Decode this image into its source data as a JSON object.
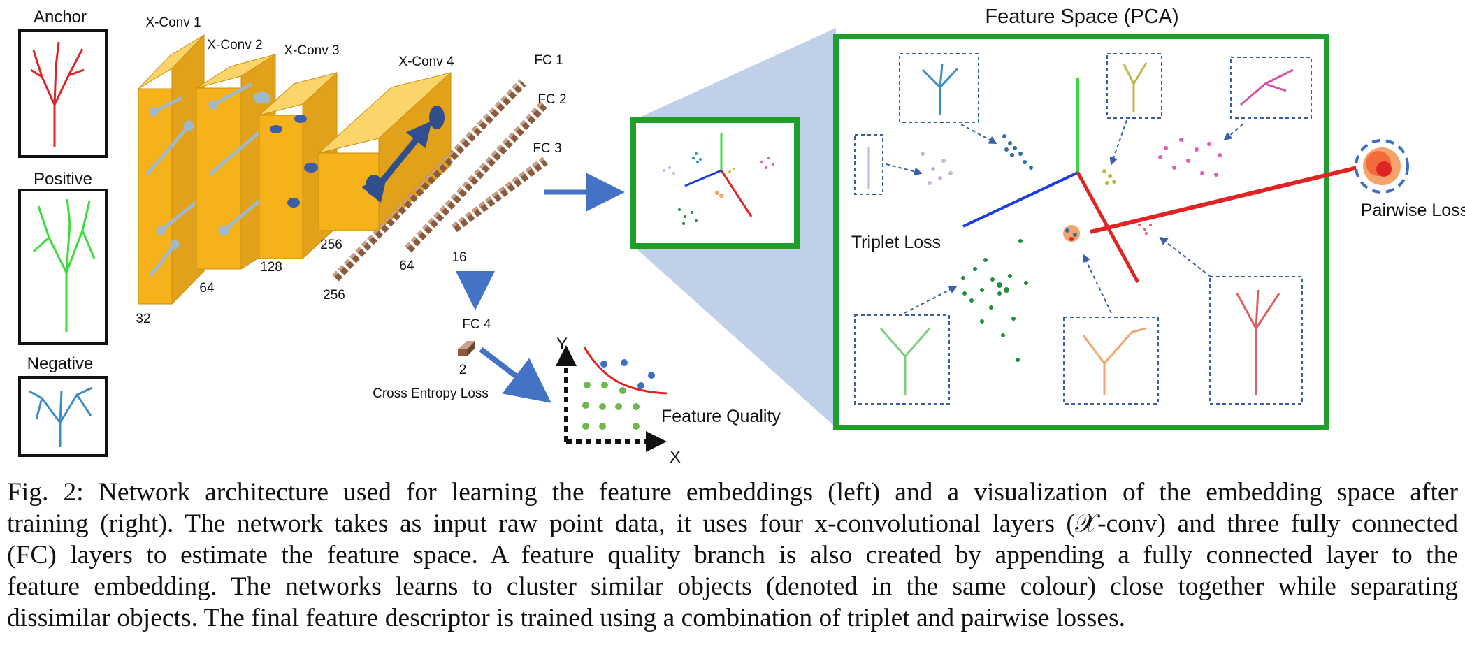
{
  "inputs": {
    "anchor": "Anchor",
    "positive": "Positive",
    "negative": "Negative"
  },
  "network": {
    "xconv1": "X-Conv 1",
    "xconv2": "X-Conv 2",
    "xconv3": "X-Conv 3",
    "xconv4": "X-Conv 4",
    "dim32": "32",
    "dim64": "64",
    "dim128": "128",
    "dim256": "256",
    "fc1": "FC 1",
    "fc2": "FC 2",
    "fc3": "FC 3",
    "fc4": "FC 4",
    "fc1_dim": "256",
    "fc2_dim": "64",
    "fc3_dim": "16",
    "fc4_dim": "2",
    "cross_entropy": "Cross Entropy Loss"
  },
  "quality_plot": {
    "y_axis": "Y",
    "x_axis": "X",
    "label": "Feature Quality"
  },
  "feature_space": {
    "title": "Feature Space (PCA)",
    "triplet": "Triplet Loss",
    "pairwise": "Pairwise Loss"
  },
  "colors": {
    "conv_yellow": "#F5B21B",
    "green_frame": "#1E9E2A",
    "arrow_blue": "#4472C4",
    "fc_brown": "#8B5A3C",
    "anchor_red": "#E02424",
    "positive_green": "#3DDB3D",
    "negative_blue": "#3C8CC8"
  },
  "caption": {
    "line1": "Fig. 2: Network architecture used for learning the feature embeddings (left) and a visualization of the embedding space after",
    "line2": "training (right). The network takes as input raw point data, it uses four x-convolutional layers (𝒳-conv) and three fully connected",
    "line3": "(FC) layers to estimate the feature space. A feature quality branch is also created by appending a fully connected layer to the",
    "line4": "feature embedding. The networks learns to cluster similar objects (denoted in the same colour) close together while separating",
    "line5": "dissimilar objects. The final feature descriptor is trained using a combination of triplet and pairwise losses."
  }
}
